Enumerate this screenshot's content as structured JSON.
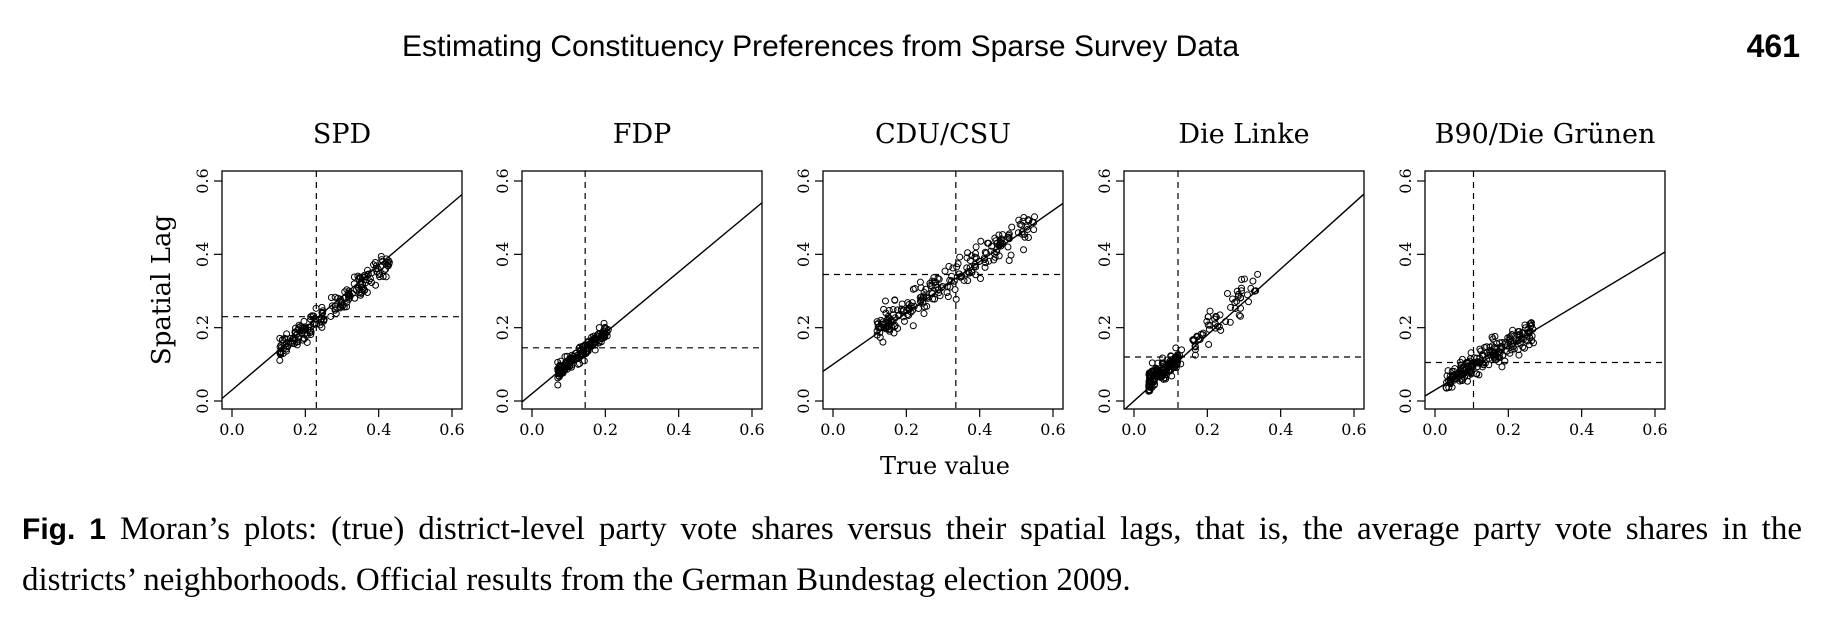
{
  "page": {
    "running_title": "Estimating Constituency Preferences from Sparse Survey Data",
    "page_number": "461"
  },
  "caption": {
    "label": "Fig. 1",
    "text": "Moran’s plots: (true) district-level party vote shares versus their spatial lags, that is, the average party vote shares in the districts’ neighborhoods. Official results from the German Bundestag election 2009."
  },
  "chart_data": [
    {
      "type": "scatter",
      "title": "SPD",
      "xlabel": "True value",
      "ylabel": "Spatial Lag",
      "xlim": [
        0.0,
        0.6
      ],
      "ylim": [
        0.0,
        0.6
      ],
      "xticks": [
        "0.0",
        "0.2",
        "0.4",
        "0.6"
      ],
      "yticks": [
        "0.0",
        "0.2",
        "0.4",
        "0.6"
      ],
      "mean_x": 0.23,
      "mean_y": 0.23,
      "fit_line": {
        "intercept": 0.03,
        "slope": 0.85
      },
      "cloud": {
        "x_min": 0.13,
        "x_max": 0.43,
        "intercept": 0.03,
        "slope": 0.82,
        "spread": 0.016,
        "n": 190
      }
    },
    {
      "type": "scatter",
      "title": "FDP",
      "xlabel": "True value",
      "ylabel": "Spatial Lag",
      "xlim": [
        0.0,
        0.6
      ],
      "ylim": [
        0.0,
        0.6
      ],
      "xticks": [
        "0.0",
        "0.2",
        "0.4",
        "0.6"
      ],
      "yticks": [
        "0.0",
        "0.2",
        "0.4",
        "0.6"
      ],
      "mean_x": 0.145,
      "mean_y": 0.145,
      "fit_line": {
        "intercept": 0.02,
        "slope": 0.83
      },
      "cloud": {
        "x_min": 0.07,
        "x_max": 0.21,
        "intercept": 0.02,
        "slope": 0.83,
        "spread": 0.01,
        "n": 170
      }
    },
    {
      "type": "scatter",
      "title": "CDU/CSU",
      "xlabel": "True value",
      "ylabel": "Spatial Lag",
      "xlim": [
        0.0,
        0.6
      ],
      "ylim": [
        0.0,
        0.6
      ],
      "xticks": [
        "0.0",
        "0.2",
        "0.4",
        "0.6"
      ],
      "yticks": [
        "0.0",
        "0.2",
        "0.4",
        "0.6"
      ],
      "mean_x": 0.335,
      "mean_y": 0.345,
      "fit_line": {
        "intercept": 0.1,
        "slope": 0.7
      },
      "cloud": {
        "x_min": 0.12,
        "x_max": 0.55,
        "intercept": 0.105,
        "slope": 0.7,
        "spread": 0.022,
        "n": 220
      }
    },
    {
      "type": "scatter",
      "title": "Die Linke",
      "xlabel": "True value",
      "ylabel": "Spatial Lag",
      "xlim": [
        0.0,
        0.6
      ],
      "ylim": [
        0.0,
        0.6
      ],
      "xticks": [
        "0.0",
        "0.2",
        "0.4",
        "0.6"
      ],
      "yticks": [
        "0.0",
        "0.2",
        "0.4",
        "0.6"
      ],
      "mean_x": 0.12,
      "mean_y": 0.12,
      "fit_line": {
        "intercept": 0.0,
        "slope": 0.9
      },
      "clusters": [
        {
          "x_min": 0.04,
          "x_max": 0.13,
          "intercept": 0.02,
          "slope": 0.8,
          "spread": 0.014,
          "n": 150
        },
        {
          "x_min": 0.16,
          "x_max": 0.34,
          "intercept": 0.01,
          "slope": 0.92,
          "spread": 0.022,
          "n": 60
        }
      ]
    },
    {
      "type": "scatter",
      "title": "B90/Die Grünen",
      "xlabel": "True value",
      "ylabel": "Spatial Lag",
      "xlim": [
        0.0,
        0.6
      ],
      "ylim": [
        0.0,
        0.6
      ],
      "xticks": [
        "0.0",
        "0.2",
        "0.4",
        "0.6"
      ],
      "yticks": [
        "0.0",
        "0.2",
        "0.4",
        "0.6"
      ],
      "mean_x": 0.105,
      "mean_y": 0.105,
      "fit_line": {
        "intercept": 0.03,
        "slope": 0.6
      },
      "cloud": {
        "x_min": 0.03,
        "x_max": 0.27,
        "intercept": 0.035,
        "slope": 0.6,
        "spread": 0.018,
        "n": 200
      }
    }
  ]
}
